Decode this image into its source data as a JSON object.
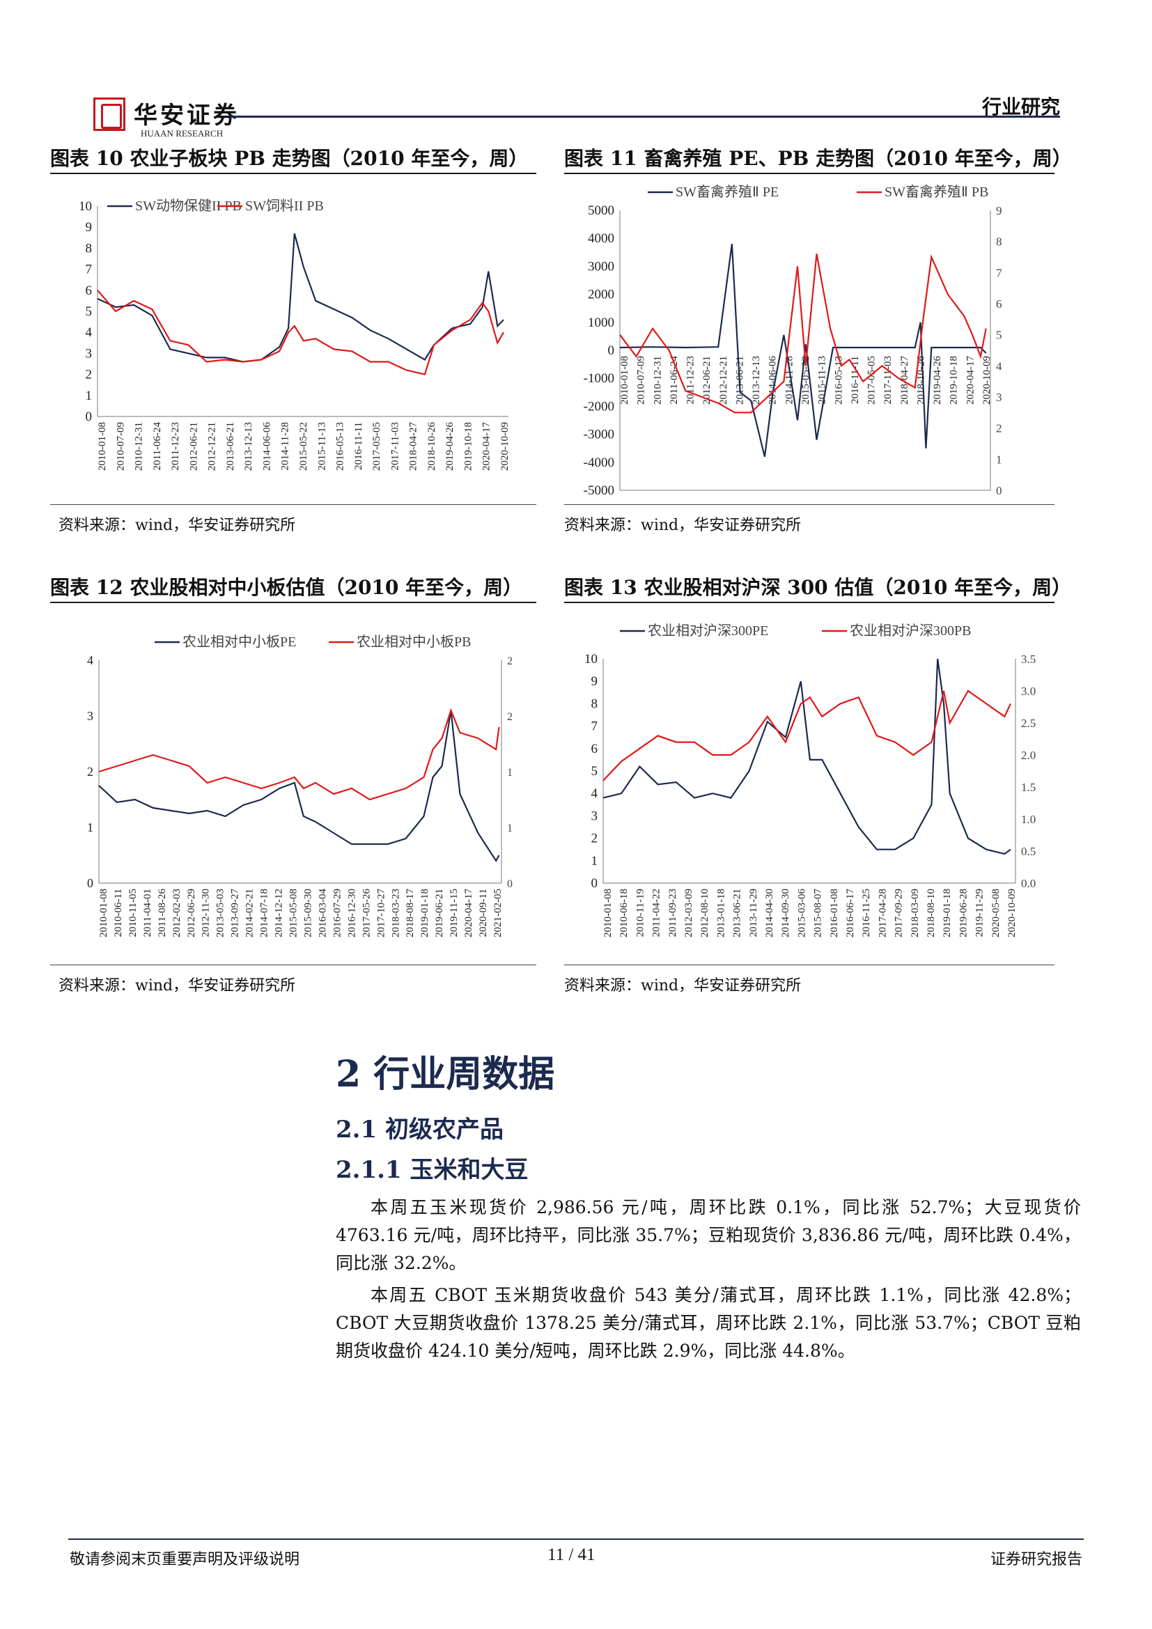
{
  "header": {
    "logo_cn": "华安证券",
    "logo_en": "HUAAN RESEARCH",
    "section_label": "行业研究"
  },
  "charts": [
    {
      "title": "图表 10 农业子板块 PB 走势图（2010 年至今，周）",
      "source": "资料来源：wind，华安证券研究所",
      "chart_data": {
        "type": "line",
        "series": [
          {
            "name": "SW动物保健II PB",
            "color": "#1c2a4f",
            "x": [
              "2010-01",
              "2010-07",
              "2011-01",
              "2011-07",
              "2012-01",
              "2012-07",
              "2013-01",
              "2013-07",
              "2014-01",
              "2014-07",
              "2015-01",
              "2015-04",
              "2015-06",
              "2015-09",
              "2016-01",
              "2016-07",
              "2017-01",
              "2017-07",
              "2018-01",
              "2018-07",
              "2019-01",
              "2019-04",
              "2019-10",
              "2020-04",
              "2020-08",
              "2020-10",
              "2021-01",
              "2021-03"
            ],
            "values": [
              5.6,
              5.2,
              5.3,
              4.8,
              3.2,
              3.0,
              2.8,
              2.8,
              2.6,
              2.7,
              3.3,
              4.2,
              8.7,
              7.1,
              5.5,
              5.1,
              4.7,
              4.1,
              3.7,
              3.2,
              2.7,
              3.4,
              4.2,
              4.4,
              5.2,
              6.9,
              4.3,
              4.6
            ]
          },
          {
            "name": "SW饲料II PB",
            "color": "#e01818",
            "x": [
              "2010-01",
              "2010-07",
              "2011-01",
              "2011-07",
              "2012-01",
              "2012-07",
              "2013-01",
              "2013-07",
              "2014-01",
              "2014-07",
              "2015-01",
              "2015-04",
              "2015-06",
              "2015-09",
              "2016-01",
              "2016-07",
              "2017-01",
              "2017-07",
              "2018-01",
              "2018-07",
              "2019-01",
              "2019-04",
              "2019-10",
              "2020-04",
              "2020-08",
              "2020-10",
              "2021-01",
              "2021-03"
            ],
            "values": [
              6.0,
              5.0,
              5.5,
              5.1,
              3.6,
              3.4,
              2.6,
              2.7,
              2.6,
              2.7,
              3.1,
              4.0,
              4.3,
              3.6,
              3.7,
              3.2,
              3.1,
              2.6,
              2.6,
              2.2,
              2.0,
              3.4,
              4.1,
              4.6,
              5.4,
              5.0,
              3.5,
              4.0
            ]
          }
        ],
        "ylim": [
          0,
          10
        ],
        "yticks": [
          "10",
          "9",
          "8",
          "7",
          "6",
          "5",
          "4",
          "3",
          "2",
          "1",
          "0"
        ],
        "xticks": [
          "2010-01-08",
          "2010-07-09",
          "2010-12-31",
          "2011-06-24",
          "2011-12-23",
          "2012-06-21",
          "2012-12-21",
          "2013-06-21",
          "2013-12-13",
          "2014-06-06",
          "2014-11-28",
          "2015-05-22",
          "2015-11-13",
          "2016-05-13",
          "2016-11-11",
          "2017-05-05",
          "2017-11-03",
          "2018-04-27",
          "2018-10-26",
          "2019-04-26",
          "2019-10-18",
          "2020-04-17",
          "2020-10-09"
        ]
      }
    },
    {
      "title": "图表 11 畜禽养殖 PE、PB 走势图（2010 年至今，周）",
      "source": "资料来源：wind，华安证券研究所",
      "chart_data": {
        "type": "line",
        "series": [
          {
            "name": "SW畜禽养殖Ⅱ PE",
            "color": "#1c2a4f",
            "axis": "left",
            "x": [
              "2010-01",
              "2011-01",
              "2012-01",
              "2013-01",
              "2013-06",
              "2013-09",
              "2014-01",
              "2014-06",
              "2014-09",
              "2015-01",
              "2015-06",
              "2015-09",
              "2016-01",
              "2016-07",
              "2017-01",
              "2018-01",
              "2019-01",
              "2019-03",
              "2019-05",
              "2019-07",
              "2020-01",
              "2021-01",
              "2021-03"
            ],
            "values": [
              100,
              120,
              100,
              120,
              3800,
              -1500,
              -1800,
              -3800,
              -1500,
              550,
              -2500,
              220,
              -3200,
              100,
              100,
              100,
              100,
              1000,
              -3500,
              100,
              100,
              100,
              -100
            ]
          },
          {
            "name": "SW畜禽养殖Ⅱ PB",
            "color": "#e01818",
            "axis": "right",
            "x": [
              "2010-01",
              "2010-07",
              "2011-01",
              "2011-07",
              "2012-01",
              "2012-07",
              "2013-01",
              "2013-07",
              "2014-01",
              "2014-07",
              "2015-01",
              "2015-06",
              "2015-09",
              "2016-01",
              "2016-06",
              "2016-10",
              "2017-01",
              "2017-06",
              "2018-01",
              "2018-07",
              "2019-01",
              "2019-04",
              "2019-07",
              "2020-01",
              "2020-07",
              "2020-10",
              "2021-01",
              "2021-03"
            ],
            "values": [
              5.0,
              4.3,
              5.2,
              4.5,
              3.2,
              3.0,
              2.8,
              2.5,
              2.5,
              3.0,
              3.5,
              7.2,
              4.0,
              7.6,
              5.2,
              4.0,
              4.2,
              3.5,
              4.0,
              3.6,
              3.3,
              5.5,
              7.5,
              6.3,
              5.6,
              5.0,
              4.3,
              5.2
            ]
          }
        ],
        "ylim_left": [
          -5000,
          5000
        ],
        "ylim_right": [
          0,
          9
        ],
        "yticks_left": [
          "5000",
          "4000",
          "3000",
          "2000",
          "1000",
          "0",
          "-1000",
          "-2000",
          "-3000",
          "-4000",
          "-5000"
        ],
        "yticks_right": [
          "9",
          "8",
          "7",
          "6",
          "5",
          "4",
          "3",
          "2",
          "1",
          "0"
        ],
        "xticks": [
          "2010-01-08",
          "2010-07-09",
          "2010-12-31",
          "2011-06-24",
          "2011-12-23",
          "2012-06-21",
          "2012-12-21",
          "2013-06-21",
          "2013-12-13",
          "2014-06-06",
          "2014-11-28",
          "2015-05-22",
          "2015-11-13",
          "2016-05-13",
          "2016-11-11",
          "2017-05-05",
          "2017-11-03",
          "2018-04-27",
          "2018-10-26",
          "2019-04-26",
          "2019-10-18",
          "2020-04-17",
          "2020-10-09"
        ]
      }
    },
    {
      "title": "图表 12 农业股相对中小板估值（2010 年至今，周）",
      "source": "资料来源：wind，华安证券研究所",
      "chart_data": {
        "type": "line",
        "series": [
          {
            "name": "农业相对中小板PE",
            "color": "#1c2a4f",
            "axis": "left",
            "x": [
              "2010-01",
              "2010-07",
              "2011-01",
              "2011-07",
              "2012-01",
              "2012-07",
              "2013-01",
              "2013-07",
              "2014-01",
              "2014-07",
              "2015-01",
              "2015-06",
              "2015-09",
              "2016-01",
              "2016-07",
              "2017-01",
              "2017-07",
              "2018-01",
              "2018-07",
              "2019-01",
              "2019-04",
              "2019-07",
              "2019-10",
              "2020-01",
              "2020-07",
              "2021-01",
              "2021-02"
            ],
            "values": [
              1.75,
              1.45,
              1.5,
              1.35,
              1.3,
              1.25,
              1.3,
              1.2,
              1.4,
              1.5,
              1.7,
              1.8,
              1.2,
              1.1,
              0.9,
              0.7,
              0.7,
              0.7,
              0.8,
              1.2,
              1.9,
              2.1,
              3.1,
              1.6,
              0.9,
              0.4,
              0.5
            ]
          },
          {
            "name": "农业相对中小板PB",
            "color": "#e01818",
            "axis": "right",
            "x": [
              "2010-01",
              "2010-07",
              "2011-01",
              "2011-07",
              "2012-01",
              "2012-07",
              "2013-01",
              "2013-07",
              "2014-01",
              "2014-07",
              "2015-01",
              "2015-06",
              "2015-09",
              "2016-01",
              "2016-07",
              "2017-01",
              "2017-07",
              "2018-01",
              "2018-07",
              "2019-01",
              "2019-04",
              "2019-07",
              "2019-10",
              "2020-01",
              "2020-07",
              "2021-01",
              "2021-02"
            ],
            "values": [
              1.0,
              1.05,
              1.1,
              1.15,
              1.1,
              1.05,
              0.9,
              0.95,
              0.9,
              0.85,
              0.9,
              0.95,
              0.85,
              0.9,
              0.8,
              0.85,
              0.75,
              0.8,
              0.85,
              0.95,
              1.2,
              1.3,
              1.55,
              1.35,
              1.3,
              1.2,
              1.4
            ]
          }
        ],
        "ylim_left": [
          0,
          4
        ],
        "ylim_right": [
          0,
          2
        ],
        "yticks_left": [
          "4",
          "3",
          "2",
          "1",
          "0"
        ],
        "yticks_right": [
          "2",
          "2",
          "1",
          "1",
          "0"
        ],
        "xticks": [
          "2010-01-08",
          "2010-06-11",
          "2010-11-05",
          "2011-04-01",
          "2011-08-26",
          "2012-02-03",
          "2012-06-29",
          "2012-11-30",
          "2013-05-03",
          "2013-09-27",
          "2014-02-21",
          "2014-07-18",
          "2014-12-12",
          "2015-05-08",
          "2015-09-30",
          "2016-03-04",
          "2016-07-29",
          "2016-12-30",
          "2017-05-26",
          "2017-10-27",
          "2018-03-23",
          "2018-08-17",
          "2019-01-18",
          "2019-06-21",
          "2019-11-15",
          "2020-04-17",
          "2020-09-11",
          "2021-02-05"
        ]
      }
    },
    {
      "title": "图表 13 农业股相对沪深 300 估值（2010 年至今，周）",
      "source": "资料来源：wind，华安证券研究所",
      "chart_data": {
        "type": "line",
        "series": [
          {
            "name": "农业相对沪深300PE",
            "color": "#1c2a4f",
            "axis": "left",
            "x": [
              "2010-01",
              "2010-07",
              "2011-01",
              "2011-07",
              "2012-01",
              "2012-07",
              "2013-01",
              "2013-07",
              "2014-01",
              "2014-07",
              "2015-01",
              "2015-06",
              "2015-09",
              "2016-01",
              "2016-07",
              "2017-01",
              "2017-07",
              "2018-01",
              "2018-07",
              "2019-01",
              "2019-03",
              "2019-05",
              "2019-07",
              "2020-01",
              "2020-07",
              "2021-01",
              "2021-03"
            ],
            "values": [
              3.8,
              4.0,
              5.2,
              4.4,
              4.5,
              3.8,
              4.0,
              3.8,
              5.0,
              7.2,
              6.5,
              9.0,
              5.5,
              5.5,
              4.0,
              2.5,
              1.5,
              1.5,
              2.0,
              3.5,
              10.0,
              8.0,
              4.0,
              2.0,
              1.5,
              1.3,
              1.5
            ]
          },
          {
            "name": "农业相对沪深300PB",
            "color": "#e01818",
            "axis": "right",
            "x": [
              "2010-01",
              "2010-07",
              "2011-01",
              "2011-07",
              "2012-01",
              "2012-07",
              "2013-01",
              "2013-07",
              "2014-01",
              "2014-07",
              "2015-01",
              "2015-06",
              "2015-09",
              "2016-01",
              "2016-07",
              "2017-01",
              "2017-07",
              "2018-01",
              "2018-07",
              "2019-01",
              "2019-03",
              "2019-05",
              "2019-07",
              "2020-01",
              "2020-07",
              "2021-01",
              "2021-03"
            ],
            "values": [
              1.6,
              1.9,
              2.1,
              2.3,
              2.2,
              2.2,
              2.0,
              2.0,
              2.2,
              2.6,
              2.2,
              2.8,
              2.9,
              2.6,
              2.8,
              2.9,
              2.3,
              2.2,
              2.0,
              2.2,
              2.6,
              3.0,
              2.5,
              3.0,
              2.8,
              2.6,
              2.8
            ]
          }
        ],
        "ylim_left": [
          0,
          10
        ],
        "ylim_right": [
          0,
          3.5
        ],
        "yticks_left": [
          "10",
          "9",
          "8",
          "7",
          "6",
          "5",
          "4",
          "3",
          "2",
          "1",
          "0"
        ],
        "yticks_right": [
          "3.5",
          "3.0",
          "2.5",
          "2.0",
          "1.5",
          "1.0",
          "0.5",
          "0.0"
        ],
        "xticks": [
          "2010-01-08",
          "2010-06-18",
          "2010-11-19",
          "2011-04-22",
          "2011-09-23",
          "2012-03-09",
          "2012-08-10",
          "2013-01-18",
          "2013-06-21",
          "2013-11-29",
          "2014-04-30",
          "2014-09-30",
          "2015-03-06",
          "2015-08-07",
          "2016-01-08",
          "2016-06-17",
          "2016-11-25",
          "2017-04-28",
          "2017-09-29",
          "2018-03-09",
          "2018-08-10",
          "2019-01-18",
          "2019-06-28",
          "2019-11-29",
          "2020-05-08",
          "2020-10-09"
        ]
      }
    }
  ],
  "section": {
    "h1": "2 行业周数据",
    "h2": "2.1  初级农产品",
    "h3": "2.1.1  玉米和大豆",
    "paragraphs": [
      "本周五玉米现货价 2,986.56 元/吨，周环比跌 0.1%，同比涨 52.7%；大豆现货价 4763.16 元/吨，周环比持平，同比涨 35.7%；豆粕现货价 3,836.86 元/吨，周环比跌 0.4%，同比涨 32.2%。",
      "本周五 CBOT 玉米期货收盘价 543 美分/蒲式耳，周环比跌 1.1%，同比涨 42.8%；CBOT 大豆期货收盘价 1378.25 美分/蒲式耳，周环比跌 2.1%，同比涨 53.7%；CBOT 豆粕期货收盘价 424.10 美分/短吨，周环比跌 2.9%，同比涨 44.8%。"
    ]
  },
  "footer": {
    "left": "敬请参阅末页重要声明及评级说明",
    "page": "11 / 41",
    "right": "证券研究报告"
  }
}
